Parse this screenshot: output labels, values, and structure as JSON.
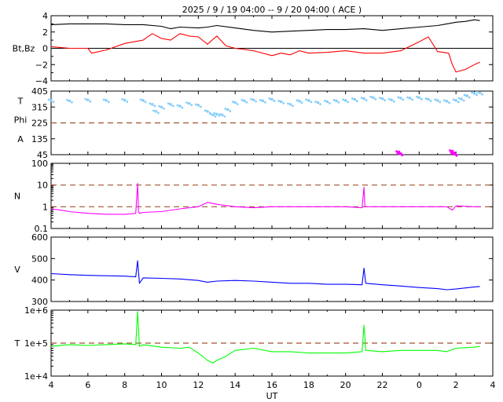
{
  "title": "2025 /  9 / 19   04:00 --  9 / 20   04:00 ( ACE )",
  "x_axis": {
    "label": "UT",
    "range": [
      4,
      28
    ],
    "tick_labels": [
      "4",
      "6",
      "8",
      "10",
      "12",
      "14",
      "16",
      "18",
      "20",
      "22",
      "0",
      "2",
      "4"
    ]
  },
  "colors": {
    "bt": "#000000",
    "bz": "#ff0000",
    "temp_theta": "#87cefa",
    "phi": "#ff00ff",
    "density": "#ff00ff",
    "speed": "#0000ff",
    "temperature": "#00ff00",
    "reference_line": "#a0522d",
    "late_points": "#a9a9a9"
  },
  "chart_data": [
    {
      "type": "line",
      "panel": "magnetic-field",
      "ylabel": "Bt,Bz",
      "ylim": [
        -4,
        4
      ],
      "yticks": [
        "4",
        "2",
        "0",
        "−2",
        "−4"
      ],
      "reference_line": 0,
      "series": [
        {
          "name": "Bt",
          "color": "#000000",
          "x": [
            4,
            5,
            6,
            7,
            8,
            9,
            10,
            10.5,
            11,
            12,
            12.5,
            13,
            14,
            15,
            16,
            17,
            18,
            19,
            20,
            21,
            22,
            23,
            24,
            25,
            25.5,
            26,
            26.5,
            27,
            27.3
          ],
          "y": [
            2.9,
            3.0,
            3.0,
            3.0,
            2.9,
            2.9,
            2.7,
            2.4,
            2.6,
            2.5,
            2.6,
            2.8,
            2.5,
            2.2,
            2.0,
            2.1,
            2.2,
            2.3,
            2.3,
            2.4,
            2.2,
            2.4,
            2.6,
            2.8,
            3.0,
            3.2,
            3.3,
            3.5,
            3.4
          ]
        },
        {
          "name": "Bz",
          "color": "#ff0000",
          "x": [
            4,
            5,
            6,
            6.2,
            7,
            8,
            9,
            9.5,
            10,
            10.5,
            11,
            11.5,
            12,
            12.5,
            13,
            13.5,
            14,
            15,
            16,
            16.5,
            17,
            17.5,
            18,
            19,
            20,
            21,
            22,
            23,
            24,
            24.5,
            25,
            25.3,
            25.6,
            25.8,
            26,
            26.5,
            27,
            27.3
          ],
          "y": [
            0.2,
            0.0,
            0.0,
            -0.6,
            -0.2,
            0.6,
            1.0,
            1.8,
            1.2,
            1.0,
            1.8,
            1.5,
            1.4,
            0.5,
            1.5,
            0.3,
            0.0,
            -0.3,
            -0.9,
            -0.6,
            -0.8,
            -0.3,
            -0.6,
            -0.5,
            -0.3,
            -0.6,
            -0.6,
            -0.3,
            0.8,
            1.4,
            -0.4,
            -0.5,
            -0.6,
            -2.0,
            -2.9,
            -2.6,
            -2.0,
            -1.7
          ]
        }
      ]
    },
    {
      "type": "scatter",
      "panel": "field-angles",
      "ylabel_lines": [
        "T",
        "Phi",
        "A"
      ],
      "ylim": [
        45,
        405
      ],
      "yticks": [
        "405",
        "315",
        "225",
        "135",
        "45"
      ],
      "reference_line": 225,
      "series": [
        {
          "name": "T",
          "color": "#87cefa",
          "x": [
            4,
            5,
            6,
            7,
            8,
            9,
            9.5,
            9.7,
            10,
            10.5,
            11,
            11.5,
            12,
            12.5,
            12.8,
            13,
            13.3,
            13.6,
            14,
            14.5,
            15,
            15.5,
            16,
            16.5,
            17,
            17.5,
            18,
            18.5,
            19,
            19.5,
            20,
            20.5,
            21,
            21.5,
            22,
            22.5,
            23,
            23.5,
            24,
            24.5,
            25,
            25.5,
            26,
            26.3,
            26.6,
            27,
            27.3
          ],
          "y": [
            352,
            350,
            355,
            352,
            354,
            352,
            330,
            290,
            315,
            330,
            320,
            335,
            325,
            290,
            270,
            275,
            270,
            300,
            340,
            350,
            355,
            350,
            358,
            345,
            330,
            348,
            352,
            340,
            345,
            350,
            352,
            358,
            362,
            368,
            362,
            355,
            365,
            365,
            368,
            358,
            352,
            348,
            352,
            360,
            378,
            392,
            395
          ]
        },
        {
          "name": "Phi",
          "color": "#ff00ff",
          "x": [
            22.9,
            22.95,
            25.8,
            25.85,
            25.9
          ],
          "y": [
            60,
            50,
            65,
            55,
            48
          ]
        }
      ]
    },
    {
      "type": "line",
      "panel": "density",
      "ylabel": "N",
      "yscale": "log",
      "ylim": [
        0.1,
        100
      ],
      "yticks": [
        "100",
        "10",
        "1",
        "0.1"
      ],
      "reference_lines": [
        10,
        1
      ],
      "series": [
        {
          "name": "N",
          "color": "#ff00ff",
          "x": [
            4,
            4.5,
            5,
            6,
            7,
            8,
            8.6,
            8.7,
            8.75,
            8.8,
            9,
            10,
            11,
            12,
            12.5,
            13,
            14,
            15,
            16,
            17,
            18,
            19,
            20,
            20.9,
            21,
            21.05,
            21.2,
            22,
            23,
            24,
            25,
            25.5,
            25.8,
            26,
            27,
            27.3
          ],
          "y": [
            0.8,
            0.7,
            0.6,
            0.5,
            0.45,
            0.45,
            0.5,
            12,
            0.6,
            0.5,
            0.55,
            0.6,
            0.8,
            1.0,
            1.6,
            1.3,
            1.0,
            0.9,
            1.0,
            1.0,
            1.0,
            1.0,
            1.0,
            0.9,
            8,
            1.0,
            1.0,
            1.0,
            1.0,
            1.0,
            1.0,
            1.0,
            0.7,
            1.1,
            1.0,
            1.0
          ]
        }
      ]
    },
    {
      "type": "line",
      "panel": "speed",
      "ylabel": "V",
      "ylim": [
        300,
        600
      ],
      "yticks": [
        "600",
        "500",
        "400",
        "300"
      ],
      "series": [
        {
          "name": "V",
          "color": "#0000ff",
          "x": [
            4,
            5,
            6,
            7,
            8,
            8.6,
            8.7,
            8.8,
            9,
            10,
            11,
            12,
            12.5,
            13,
            14,
            15,
            16,
            17,
            18,
            19,
            20,
            20.9,
            21,
            21.1,
            22,
            23,
            24,
            25,
            25.5,
            26,
            27,
            27.3
          ],
          "y": [
            430,
            425,
            422,
            420,
            418,
            415,
            490,
            385,
            410,
            408,
            405,
            398,
            390,
            395,
            398,
            395,
            390,
            385,
            385,
            380,
            380,
            378,
            455,
            385,
            378,
            372,
            365,
            360,
            355,
            358,
            368,
            370
          ]
        }
      ]
    },
    {
      "type": "line",
      "panel": "temperature",
      "ylabel": "T",
      "yscale": "log",
      "ylim": [
        10000,
        1000000
      ],
      "yticks": [
        "1e+6",
        "1e+5",
        "1e+4"
      ],
      "reference_line": 100000,
      "series": [
        {
          "name": "T",
          "color": "#00ff00",
          "x": [
            4,
            5,
            6,
            7,
            8,
            8.6,
            8.7,
            8.8,
            9,
            10,
            11,
            11.5,
            12,
            12.5,
            12.8,
            13,
            13.5,
            14,
            15,
            16,
            17,
            18,
            19,
            20,
            20.9,
            21,
            21.1,
            22,
            23,
            24,
            25,
            25.5,
            26,
            27,
            27.3
          ],
          "y": [
            80000,
            90000,
            85000,
            90000,
            95000,
            90000,
            900000,
            80000,
            90000,
            75000,
            70000,
            75000,
            50000,
            30000,
            25000,
            30000,
            40000,
            60000,
            70000,
            55000,
            55000,
            50000,
            50000,
            50000,
            55000,
            350000,
            60000,
            55000,
            60000,
            60000,
            60000,
            55000,
            70000,
            75000,
            80000
          ]
        }
      ]
    }
  ]
}
